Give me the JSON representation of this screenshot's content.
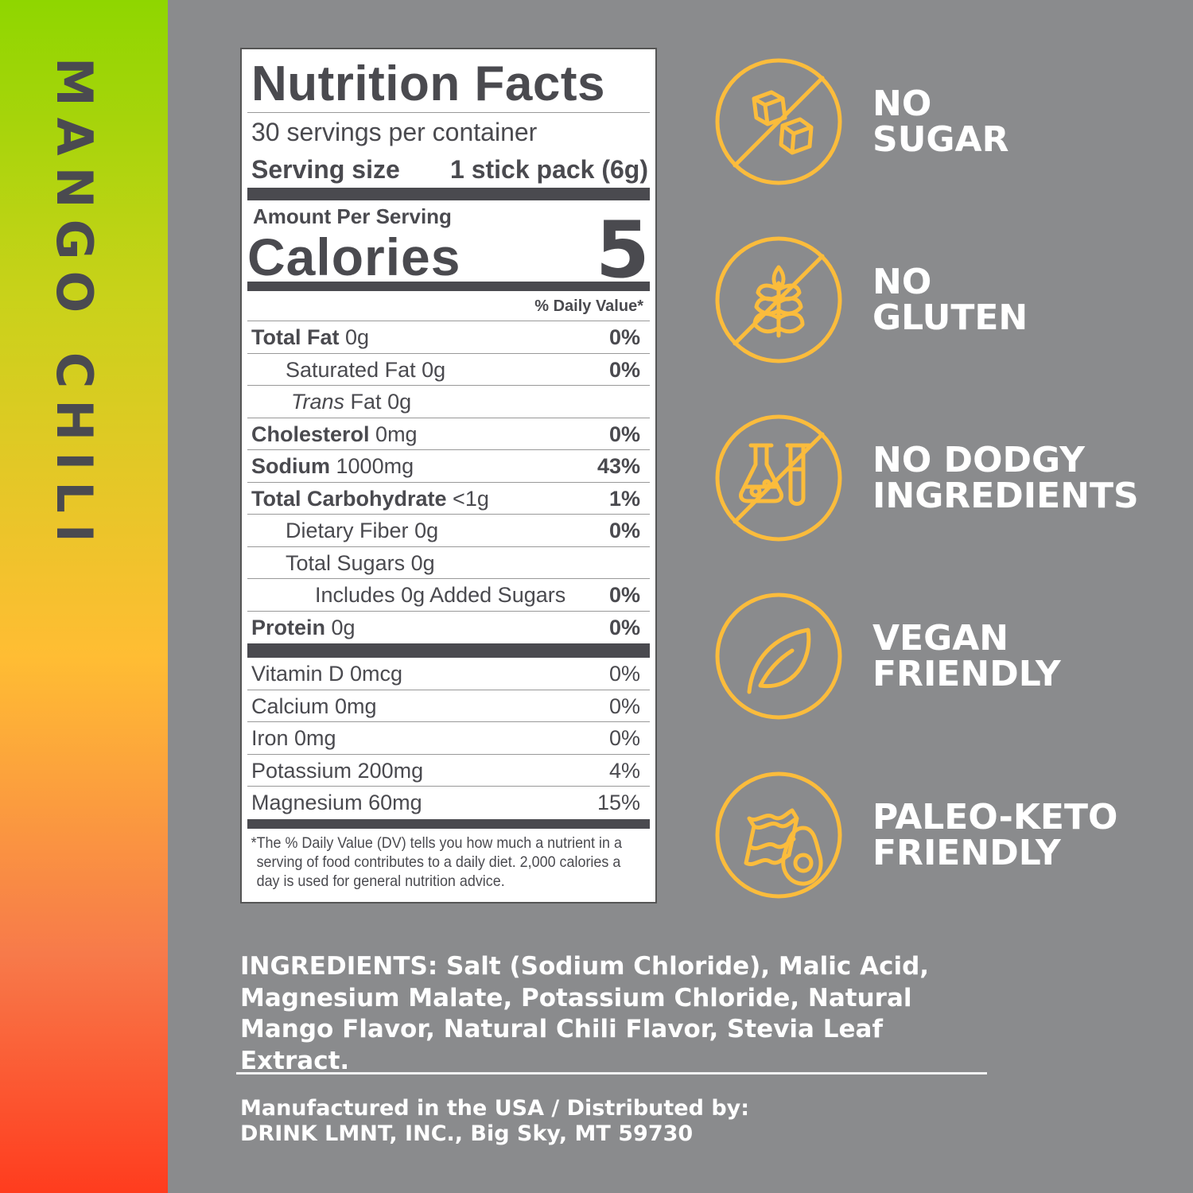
{
  "flavor": "MANGO CHILI",
  "colors": {
    "background": "#8a8b8d",
    "icon": "#fbbc3c",
    "label_text": "#4a4a4f",
    "strip_top": "#8fd600",
    "strip_mid": "#ffbd33",
    "strip_bottom": "#ff3c1e"
  },
  "label": {
    "title": "Nutrition Facts",
    "servings": "30 servings per container",
    "serving_size_label": "Serving size",
    "serving_size_value": "1 stick pack (6g)",
    "amount_per_serving": "Amount Per Serving",
    "calories_label": "Calories",
    "calories_value": "5",
    "dv_header": "% Daily Value*",
    "nutrients": [
      {
        "name": "Total Fat",
        "amount": "0g",
        "dv": "0%"
      },
      {
        "name": "Saturated Fat",
        "amount": "0g",
        "dv": "0%"
      },
      {
        "name": "Trans",
        "name2": "Fat",
        "amount": "0g",
        "dv": ""
      },
      {
        "name": "Cholesterol",
        "amount": "0mg",
        "dv": "0%"
      },
      {
        "name": "Sodium",
        "amount": "1000mg",
        "dv": "43%"
      },
      {
        "name": "Total Carbohydrate",
        "amount": "<1g",
        "dv": "1%"
      },
      {
        "name": "Dietary Fiber",
        "amount": "0g",
        "dv": "0%"
      },
      {
        "name": "Total Sugars",
        "amount": "0g",
        "dv": ""
      },
      {
        "name": "Includes 0g Added Sugars",
        "amount": "",
        "dv": "0%"
      },
      {
        "name": "Protein",
        "amount": "0g",
        "dv": "0%"
      }
    ],
    "vitamins": [
      {
        "name": "Vitamin D 0mcg",
        "dv": "0%"
      },
      {
        "name": "Calcium 0mg",
        "dv": "0%"
      },
      {
        "name": "Iron 0mg",
        "dv": "0%"
      },
      {
        "name": "Potassium 200mg",
        "dv": "4%"
      },
      {
        "name": "Magnesium 60mg",
        "dv": "15%"
      }
    ],
    "footnote_star": "*",
    "footnote": "The % Daily Value (DV) tells you how much a nutrient in a serving of food contributes to a daily diet. 2,000 calories a day is used for general nutrition advice."
  },
  "claims": [
    {
      "icon": "no-sugar-cubes-icon",
      "line1": "NO",
      "line2": "SUGAR"
    },
    {
      "icon": "no-wheat-icon",
      "line1": "NO",
      "line2": "GLUTEN"
    },
    {
      "icon": "no-lab-flask-icon",
      "line1": "NO DODGY",
      "line2": "INGREDIENTS"
    },
    {
      "icon": "leaf-icon",
      "line1": "VEGAN",
      "line2": "FRIENDLY"
    },
    {
      "icon": "bacon-avocado-icon",
      "line1": "PALEO-KETO",
      "line2": "FRIENDLY"
    }
  ],
  "ingredients": {
    "label": "INGREDIENTS:",
    "text": "Salt (Sodium Chloride), Malic Acid, Magnesium Malate, Potassium Chloride, Natural Mango Flavor, Natural Chili Flavor, Stevia Leaf Extract."
  },
  "manufacturer": {
    "line1": "Manufactured in the USA / Distributed by:",
    "line2": "DRINK LMNT, INC., Big Sky, MT 59730"
  }
}
